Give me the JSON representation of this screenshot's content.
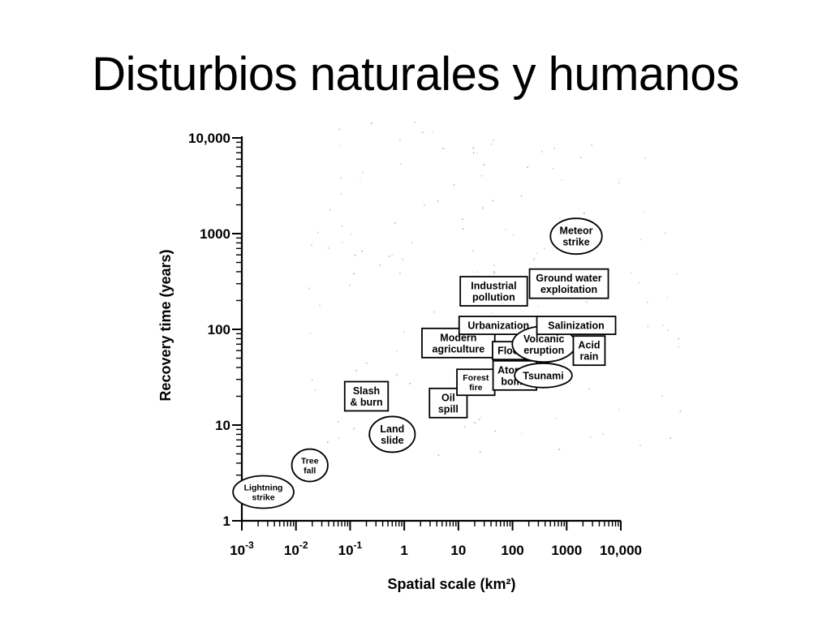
{
  "slide": {
    "title": "Disturbios naturales y humanos"
  },
  "chart_data": {
    "type": "scatter",
    "title": "",
    "xlabel": "Spatial scale (km²)",
    "ylabel": "Recovery time (years)",
    "x_scale": "log",
    "y_scale": "log",
    "xlim": [
      0.001,
      10000
    ],
    "ylim": [
      1,
      10000
    ],
    "x_ticks": [
      {
        "value": 0.001,
        "base": "10",
        "exp": "-3"
      },
      {
        "value": 0.01,
        "base": "10",
        "exp": "-2"
      },
      {
        "value": 0.1,
        "base": "10",
        "exp": "-1"
      },
      {
        "value": 1,
        "base": "1",
        "exp": ""
      },
      {
        "value": 10,
        "base": "10",
        "exp": ""
      },
      {
        "value": 100,
        "base": "100",
        "exp": ""
      },
      {
        "value": 1000,
        "base": "1000",
        "exp": ""
      },
      {
        "value": 10000,
        "base": "10,000",
        "exp": ""
      }
    ],
    "y_ticks": [
      {
        "value": 1,
        "label": "1"
      },
      {
        "value": 10,
        "label": "10"
      },
      {
        "value": 100,
        "label": "100"
      },
      {
        "value": 1000,
        "label": "1000"
      },
      {
        "value": 10000,
        "label": "10,000"
      }
    ],
    "grid": false,
    "legend": "none",
    "points": [
      {
        "label": [
          "Lightning",
          "strike"
        ],
        "shape": "ellipse",
        "x": 0.0025,
        "y": 2.0,
        "small": true
      },
      {
        "label": [
          "Tree",
          "fall"
        ],
        "shape": "ellipse",
        "x": 0.018,
        "y": 3.8,
        "small": true
      },
      {
        "label": [
          "Slash",
          "& burn"
        ],
        "shape": "box",
        "x": 0.2,
        "y": 20,
        "small": false
      },
      {
        "label": [
          "Land",
          "slide"
        ],
        "shape": "ellipse",
        "x": 0.6,
        "y": 8.0,
        "small": false
      },
      {
        "label": [
          "Oil",
          "spill"
        ],
        "shape": "box",
        "x": 6.5,
        "y": 17,
        "small": false
      },
      {
        "label": [
          "Forest",
          "fire"
        ],
        "shape": "box",
        "x": 21,
        "y": 28,
        "small": true
      },
      {
        "label": [
          "Modern",
          "agriculture"
        ],
        "shape": "box",
        "x": 10,
        "y": 72,
        "small": false
      },
      {
        "label": [
          "Urbanization"
        ],
        "shape": "box",
        "x": 55,
        "y": 110,
        "small": false
      },
      {
        "label": [
          "Flood"
        ],
        "shape": "box",
        "x": 95,
        "y": 60,
        "small": false
      },
      {
        "label": [
          "Atomic",
          "bomb"
        ],
        "shape": "box",
        "x": 110,
        "y": 33,
        "small": false
      },
      {
        "label": [
          "Industrial",
          "pollution"
        ],
        "shape": "box",
        "x": 45,
        "y": 250,
        "small": false
      },
      {
        "label": [
          "Volcanic",
          "eruption"
        ],
        "shape": "ellipse",
        "x": 380,
        "y": 70,
        "small": false
      },
      {
        "label": [
          "Tsunami"
        ],
        "shape": "ellipse",
        "x": 370,
        "y": 33,
        "small": false
      },
      {
        "label": [
          "Acid",
          "rain"
        ],
        "shape": "box",
        "x": 2600,
        "y": 60,
        "small": false
      },
      {
        "label": [
          "Salinization"
        ],
        "shape": "box",
        "x": 1500,
        "y": 110,
        "small": false
      },
      {
        "label": [
          "Ground water",
          "exploitation"
        ],
        "shape": "box",
        "x": 1100,
        "y": 300,
        "small": false
      },
      {
        "label": [
          "Meteor",
          "strike"
        ],
        "shape": "ellipse",
        "x": 1500,
        "y": 940,
        "small": false
      }
    ]
  }
}
